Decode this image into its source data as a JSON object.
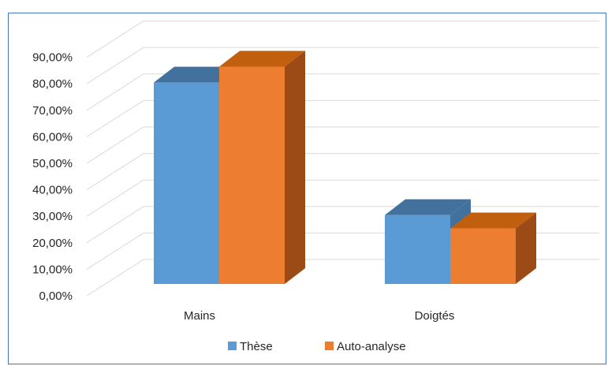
{
  "chart_data": {
    "type": "bar",
    "style": "3d-clustered-column",
    "categories": [
      "Mains",
      "Doigtés"
    ],
    "series": [
      {
        "name": "Thèse",
        "values": [
          0.76,
          0.26
        ],
        "color": "#5B9BD5",
        "top_color": "#41719C",
        "side_color": "#41719C"
      },
      {
        "name": "Auto-analyse",
        "values": [
          0.82,
          0.21
        ],
        "color": "#ED7D31",
        "top_color": "#C0600E",
        "side_color": "#9C4A16"
      }
    ],
    "y_ticks": [
      "0,00%",
      "10,00%",
      "20,00%",
      "30,00%",
      "40,00%",
      "50,00%",
      "60,00%",
      "70,00%",
      "80,00%",
      "90,00%"
    ],
    "ylim": [
      0,
      0.9
    ],
    "grid": true,
    "legend": "bottom",
    "title": "",
    "xlabel": "",
    "ylabel": ""
  }
}
